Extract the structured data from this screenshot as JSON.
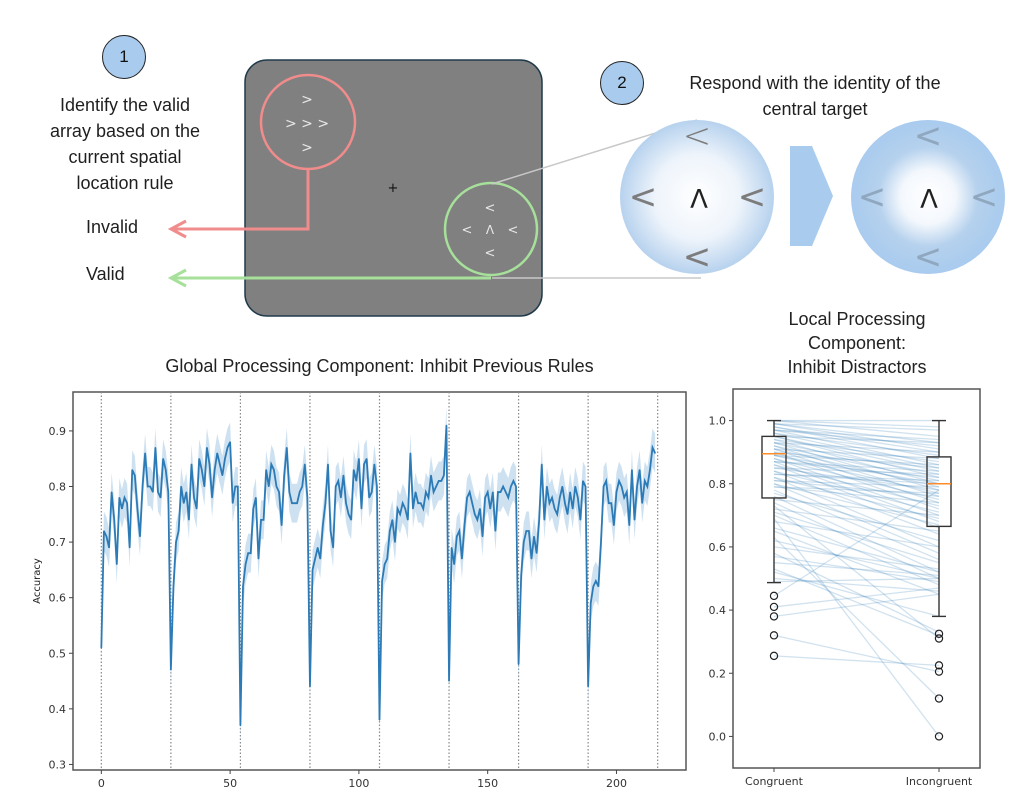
{
  "diagram": {
    "step1": {
      "number": "1",
      "instruction": "Identify the valid array based on the current spatial location rule",
      "instruction_lines": [
        "Identify the valid",
        "array based on the",
        "current spatial",
        "location rule"
      ]
    },
    "step2": {
      "number": "2",
      "instruction_lines": [
        "Respond with the identity of the",
        "central target"
      ]
    },
    "labels": {
      "invalid": "Invalid",
      "valid": "Valid"
    },
    "fixation": "+",
    "invalid_array": {
      "top": ">",
      "middle": "> > >",
      "bottom": ">"
    },
    "valid_array": {
      "top": "<",
      "left": "<",
      "center": "Λ",
      "right": "<",
      "bottom": "<"
    },
    "zoom_circles": {
      "before": {
        "top": "<",
        "left": "<",
        "center": "Λ",
        "right": "<",
        "bottom": "<"
      },
      "after": {
        "top": "<",
        "left": "<",
        "center": "Λ",
        "right": "<",
        "bottom": "<"
      }
    },
    "colors": {
      "invalid": "#f08c8c",
      "valid": "#a6e09a",
      "screen": "#808080",
      "screen_border": "#1f3a4a",
      "badge": "#a9cbee",
      "focus_blue": "#a9cbee"
    }
  },
  "chart_data": [
    {
      "type": "line",
      "title": "Global Processing Component: Inhibit Previous Rules",
      "xlabel": "",
      "ylabel": "Accuracy",
      "xlim": [
        -11,
        227
      ],
      "ylim": [
        0.29,
        0.97
      ],
      "xticks": [
        0,
        50,
        100,
        150,
        200
      ],
      "xtick_labels": [
        "0",
        "50",
        "100",
        "150",
        "200"
      ],
      "yticks": [
        0.3,
        0.4,
        0.5,
        0.6,
        0.7,
        0.8,
        0.9
      ],
      "ytick_labels": [
        "0.3",
        "0.4",
        "0.5",
        "0.6",
        "0.7",
        "0.8",
        "0.9"
      ],
      "rule_switch_lines": [
        0,
        27,
        54,
        81,
        108,
        135,
        162,
        189,
        216
      ],
      "ci_halfwidth": 0.035,
      "series": [
        {
          "name": "mean accuracy",
          "color": "#2c7bb6",
          "band_color": "#a6c8e6",
          "values": [
            0.51,
            0.72,
            0.71,
            0.69,
            0.79,
            0.74,
            0.66,
            0.78,
            0.76,
            0.78,
            0.77,
            0.69,
            0.83,
            0.82,
            0.76,
            0.71,
            0.8,
            0.86,
            0.8,
            0.8,
            0.79,
            0.87,
            0.79,
            0.78,
            0.85,
            0.83,
            0.79,
            0.47,
            0.62,
            0.7,
            0.72,
            0.8,
            0.77,
            0.79,
            0.74,
            0.84,
            0.78,
            0.76,
            0.85,
            0.83,
            0.8,
            0.87,
            0.84,
            0.78,
            0.83,
            0.86,
            0.84,
            0.82,
            0.85,
            0.87,
            0.88,
            0.77,
            0.8,
            0.8,
            0.37,
            0.62,
            0.66,
            0.68,
            0.68,
            0.76,
            0.78,
            0.67,
            0.74,
            0.74,
            0.83,
            0.8,
            0.84,
            0.83,
            0.8,
            0.79,
            0.73,
            0.82,
            0.87,
            0.79,
            0.77,
            0.77,
            0.77,
            0.79,
            0.8,
            0.84,
            0.78,
            0.44,
            0.65,
            0.67,
            0.69,
            0.67,
            0.73,
            0.77,
            0.84,
            0.72,
            0.69,
            0.8,
            0.81,
            0.78,
            0.82,
            0.77,
            0.75,
            0.74,
            0.83,
            0.81,
            0.85,
            0.76,
            0.84,
            0.85,
            0.78,
            0.79,
            0.84,
            0.8,
            0.38,
            0.63,
            0.66,
            0.67,
            0.72,
            0.74,
            0.7,
            0.76,
            0.75,
            0.77,
            0.76,
            0.74,
            0.86,
            0.76,
            0.79,
            0.77,
            0.77,
            0.76,
            0.79,
            0.78,
            0.82,
            0.79,
            0.8,
            0.81,
            0.81,
            0.82,
            0.91,
            0.45,
            0.69,
            0.66,
            0.71,
            0.72,
            0.67,
            0.73,
            0.78,
            0.79,
            0.77,
            0.75,
            0.74,
            0.76,
            0.71,
            0.78,
            0.79,
            0.76,
            0.79,
            0.72,
            0.79,
            0.79,
            0.8,
            0.79,
            0.78,
            0.8,
            0.81,
            0.8,
            0.48,
            0.64,
            0.7,
            0.72,
            0.72,
            0.67,
            0.71,
            0.68,
            0.74,
            0.84,
            0.74,
            0.8,
            0.77,
            0.78,
            0.76,
            0.75,
            0.78,
            0.8,
            0.77,
            0.75,
            0.79,
            0.76,
            0.8,
            0.78,
            0.74,
            0.81,
            0.8,
            0.44,
            0.59,
            0.62,
            0.63,
            0.62,
            0.7,
            0.8,
            0.81,
            0.77,
            0.77,
            0.73,
            0.79,
            0.81,
            0.8,
            0.78,
            0.79,
            0.73,
            0.83,
            0.74,
            0.8,
            0.83,
            0.77,
            0.81,
            0.8,
            0.83,
            0.87,
            0.86
          ]
        }
      ],
      "grid": false
    },
    {
      "type": "box",
      "title": "Local Processing Component: Inhibit Distractors",
      "title_lines": [
        "Local Processing",
        "Component:",
        "Inhibit Distractors"
      ],
      "categories": [
        "Congruent",
        "Incongruent"
      ],
      "ylim": [
        -0.1,
        1.1
      ],
      "yticks": [
        0.0,
        0.2,
        0.4,
        0.6,
        0.8,
        1.0
      ],
      "ytick_labels": [
        "0.0",
        "0.2",
        "0.4",
        "0.6",
        "0.8",
        "1.0"
      ],
      "boxes": [
        {
          "name": "Congruent",
          "whisker_low": 0.487,
          "q1": 0.755,
          "median": 0.895,
          "q3": 0.95,
          "whisker_high": 1.0,
          "outliers": [
            0.445,
            0.41,
            0.38,
            0.32,
            0.255
          ]
        },
        {
          "name": "Incongruent",
          "whisker_low": 0.38,
          "q1": 0.665,
          "median": 0.8,
          "q3": 0.885,
          "whisker_high": 1.0,
          "outliers": [
            0.325,
            0.31,
            0.225,
            0.205,
            0.12,
            0.0
          ]
        }
      ],
      "paired_lines_note": "one line per participant linking Congruent to Incongruent accuracy",
      "paired": [
        [
          1.0,
          0.98
        ],
        [
          1.0,
          0.95
        ],
        [
          0.99,
          0.93
        ],
        [
          0.99,
          0.91
        ],
        [
          0.98,
          0.9
        ],
        [
          0.98,
          0.88
        ],
        [
          0.97,
          0.92
        ],
        [
          0.97,
          0.86
        ],
        [
          0.96,
          0.85
        ],
        [
          0.96,
          0.89
        ],
        [
          0.95,
          0.84
        ],
        [
          0.95,
          0.82
        ],
        [
          0.94,
          0.87
        ],
        [
          0.94,
          0.8
        ],
        [
          0.93,
          0.83
        ],
        [
          0.93,
          0.78
        ],
        [
          0.92,
          0.81
        ],
        [
          0.92,
          0.76
        ],
        [
          0.91,
          0.79
        ],
        [
          0.91,
          0.74
        ],
        [
          0.9,
          0.85
        ],
        [
          0.9,
          0.72
        ],
        [
          0.89,
          0.8
        ],
        [
          0.89,
          0.77
        ],
        [
          0.88,
          0.7
        ],
        [
          0.88,
          0.75
        ],
        [
          0.87,
          0.82
        ],
        [
          0.87,
          0.68
        ],
        [
          0.86,
          0.73
        ],
        [
          0.86,
          0.66
        ],
        [
          0.85,
          0.78
        ],
        [
          0.84,
          0.64
        ],
        [
          0.84,
          0.71
        ],
        [
          0.83,
          0.8
        ],
        [
          0.82,
          0.6
        ],
        [
          0.82,
          0.69
        ],
        [
          0.81,
          0.76
        ],
        [
          0.8,
          0.58
        ],
        [
          0.8,
          0.67
        ],
        [
          0.79,
          0.74
        ],
        [
          0.78,
          0.56
        ],
        [
          0.77,
          0.62
        ],
        [
          0.76,
          0.52
        ],
        [
          0.75,
          0.7
        ],
        [
          0.74,
          0.5
        ],
        [
          0.73,
          0.31
        ],
        [
          0.72,
          0.65
        ],
        [
          0.71,
          0.55
        ],
        [
          0.7,
          0.48
        ],
        [
          0.69,
          0.0
        ],
        [
          0.68,
          0.6
        ],
        [
          0.66,
          0.52
        ],
        [
          0.65,
          0.45
        ],
        [
          0.63,
          0.12
        ],
        [
          0.62,
          0.5
        ],
        [
          0.6,
          0.53
        ],
        [
          0.58,
          0.33
        ],
        [
          0.57,
          0.49
        ],
        [
          0.55,
          0.51
        ],
        [
          0.53,
          0.32
        ],
        [
          0.52,
          0.38
        ],
        [
          0.5,
          0.46
        ],
        [
          0.49,
          0.5
        ],
        [
          0.445,
          0.78
        ],
        [
          0.41,
          0.47
        ],
        [
          0.38,
          0.45
        ],
        [
          0.32,
          0.205
        ],
        [
          0.255,
          0.225
        ],
        [
          1.0,
          1.0
        ],
        [
          0.99,
          0.97
        ],
        [
          0.97,
          0.94
        ],
        [
          0.95,
          0.93
        ],
        [
          0.93,
          0.9
        ],
        [
          0.91,
          0.88
        ],
        [
          0.89,
          0.86
        ],
        [
          0.87,
          0.84
        ],
        [
          0.85,
          0.83
        ],
        [
          0.83,
          0.81
        ],
        [
          0.81,
          0.79
        ],
        [
          0.79,
          0.77
        ]
      ],
      "box_color": "#333333",
      "median_color": "#ff8c2a",
      "line_color": "#2c7bb6"
    }
  ]
}
